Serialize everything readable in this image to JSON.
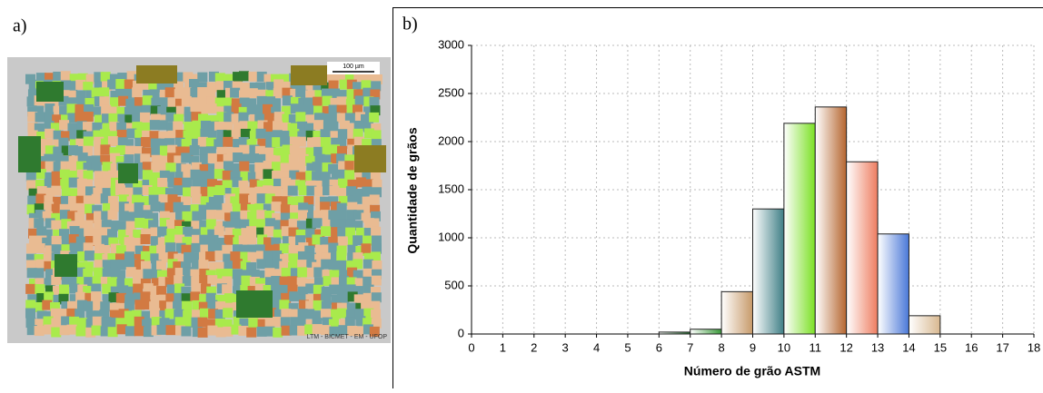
{
  "panel_a": {
    "label": "a)",
    "scale_bar": "100 µm",
    "credit": "LTM - BICMET - EM - UFOP"
  },
  "chart_data": {
    "type": "histogram",
    "label": "b)",
    "x_label": "Número de grão ASTM",
    "y_label": "Quantidade de grãos",
    "bins": [
      0,
      1,
      2,
      3,
      4,
      5,
      6,
      7,
      8,
      9,
      10,
      11,
      12,
      13,
      14,
      15,
      16,
      17,
      18
    ],
    "counts": [
      0,
      0,
      0,
      0,
      0,
      0,
      20,
      50,
      440,
      1300,
      2190,
      2360,
      1790,
      1040,
      190,
      0,
      0,
      0
    ],
    "colors": [
      "#999999",
      "#999999",
      "#999999",
      "#999999",
      "#999999",
      "#999999",
      "#1f6b2a",
      "#3a9a3a",
      "#c79a6a",
      "#3f7f86",
      "#7be024",
      "#b5652f",
      "#ee7d60",
      "#4a78d8",
      "#d8b890",
      "#999999",
      "#999999",
      "#999999"
    ],
    "xlim": [
      0,
      18
    ],
    "xticks": [
      0,
      1,
      2,
      3,
      4,
      5,
      6,
      7,
      8,
      9,
      10,
      11,
      12,
      13,
      14,
      15,
      16,
      17,
      18
    ],
    "ylim": [
      0,
      3000
    ],
    "yticks": [
      0,
      500,
      1000,
      1500,
      2000,
      2500,
      3000
    ],
    "grid": true
  }
}
